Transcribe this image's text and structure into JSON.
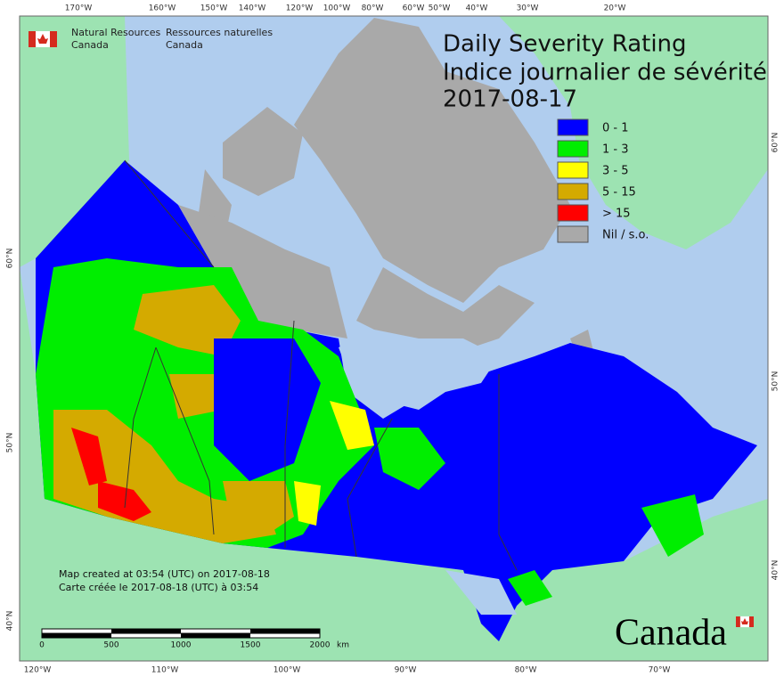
{
  "agency": {
    "en_line1": "Natural Resources",
    "en_line2": "Canada",
    "fr_line1": "Ressources naturelles",
    "fr_line2": "Canada"
  },
  "title": {
    "line1": "Daily Severity Rating",
    "line2": "Indice journalier de sévérité",
    "date": "2017-08-17"
  },
  "legend": [
    {
      "label": "0 - 1",
      "color": "#0000ff"
    },
    {
      "label": "1 - 3",
      "color": "#00ee00"
    },
    {
      "label": "3 - 5",
      "color": "#ffff00"
    },
    {
      "label": "5 - 15",
      "color": "#d4aa00"
    },
    {
      "label": "> 15",
      "color": "#ff0000"
    },
    {
      "label": "Nil / s.o.",
      "color": "#a9a9a9"
    }
  ],
  "credits": [
    "Map created at 03:54 (UTC) on 2017-08-18",
    "Carte créée le 2017-08-18 (UTC) à 03:54"
  ],
  "scale_bar": {
    "labels": [
      "0",
      "500",
      "1000",
      "1500",
      "2000"
    ],
    "unit": "km"
  },
  "wordmark": "Canada",
  "graticule": {
    "top": [
      "170°W",
      "160°W",
      "150°W",
      "140°W",
      "120°W",
      "100°W",
      "80°W",
      "60°W",
      "50°W",
      "40°W",
      "30°W",
      "20°W"
    ],
    "bottom": [
      "120°W",
      "110°W",
      "100°W",
      "90°W",
      "80°W",
      "70°W"
    ],
    "left": [
      "60°N",
      "50°N",
      "40°N"
    ],
    "right": [
      "60°N",
      "50°N",
      "40°N"
    ]
  }
}
